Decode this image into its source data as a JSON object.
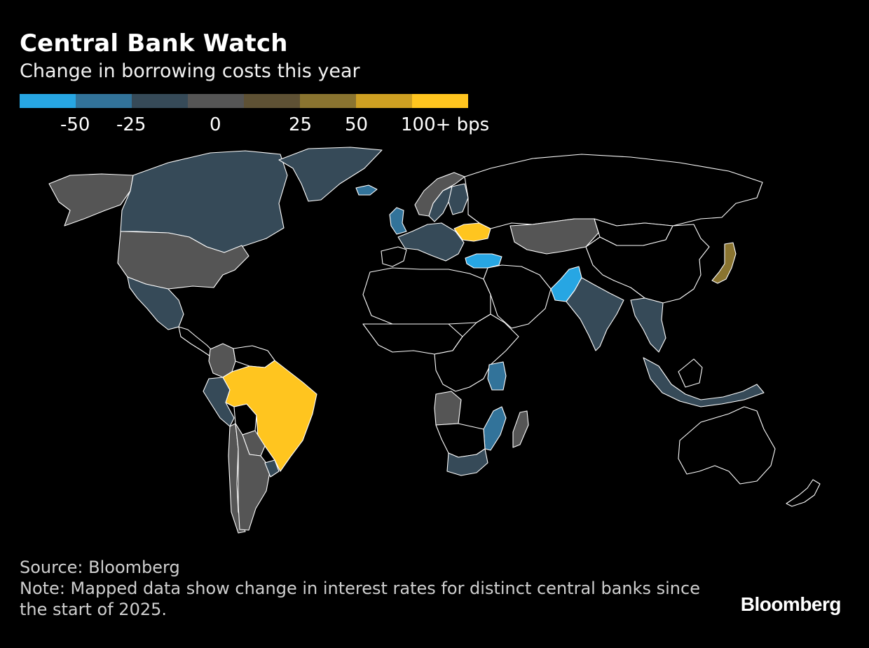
{
  "header": {
    "title": "Central Bank Watch",
    "subtitle": "Change in borrowing costs this year"
  },
  "legend": {
    "swatches": [
      "#27a6e3",
      "#32739a",
      "#364a58",
      "#555555",
      "#5e5134",
      "#8a7430",
      "#cea022",
      "#ffc51f"
    ],
    "labels": [
      "-50",
      "-25",
      "0",
      "25",
      "50",
      "100+ bps"
    ]
  },
  "map": {
    "no_data_color": "#000000",
    "border_color": "#ffffff",
    "regions": [
      {
        "name": "Alaska",
        "color": "#555555"
      },
      {
        "name": "Canada",
        "color": "#364a58"
      },
      {
        "name": "Greenland",
        "color": "#364a58"
      },
      {
        "name": "United States",
        "color": "#555555"
      },
      {
        "name": "Mexico",
        "color": "#364a58"
      },
      {
        "name": "Central America",
        "color": "#000000"
      },
      {
        "name": "Colombia",
        "color": "#555555"
      },
      {
        "name": "Venezuela",
        "color": "#000000"
      },
      {
        "name": "Peru",
        "color": "#364a58"
      },
      {
        "name": "Bolivia",
        "color": "#000000"
      },
      {
        "name": "Brazil",
        "color": "#ffc51f"
      },
      {
        "name": "Paraguay",
        "color": "#555555"
      },
      {
        "name": "Chile",
        "color": "#555555"
      },
      {
        "name": "Argentina",
        "color": "#555555"
      },
      {
        "name": "Uruguay",
        "color": "#364a58"
      },
      {
        "name": "Iceland",
        "color": "#32739a"
      },
      {
        "name": "Norway",
        "color": "#555555"
      },
      {
        "name": "Sweden",
        "color": "#364a58"
      },
      {
        "name": "Finland",
        "color": "#364a58"
      },
      {
        "name": "United Kingdom",
        "color": "#32739a"
      },
      {
        "name": "Western Europe",
        "color": "#364a58"
      },
      {
        "name": "Spain and Portugal",
        "color": "#364a58"
      },
      {
        "name": "Ukraine",
        "color": "#ffc51f"
      },
      {
        "name": "Turkey",
        "color": "#27a6e3"
      },
      {
        "name": "Russia",
        "color": "#000000"
      },
      {
        "name": "Kazakhstan",
        "color": "#555555"
      },
      {
        "name": "China",
        "color": "#000000"
      },
      {
        "name": "Mongolia",
        "color": "#000000"
      },
      {
        "name": "Japan",
        "color": "#8a7430"
      },
      {
        "name": "Pakistan",
        "color": "#27a6e3"
      },
      {
        "name": "India",
        "color": "#364a58"
      },
      {
        "name": "Middle East",
        "color": "#000000"
      },
      {
        "name": "North Africa",
        "color": "#000000"
      },
      {
        "name": "West Africa",
        "color": "#000000"
      },
      {
        "name": "Kenya",
        "color": "#32739a"
      },
      {
        "name": "Angola",
        "color": "#555555"
      },
      {
        "name": "Mozambique",
        "color": "#32739a"
      },
      {
        "name": "Madagascar",
        "color": "#555555"
      },
      {
        "name": "South Africa",
        "color": "#364a58"
      },
      {
        "name": "Southeast Asia",
        "color": "#364a58"
      },
      {
        "name": "Indonesia",
        "color": "#364a58"
      },
      {
        "name": "Australia",
        "color": "#000000"
      },
      {
        "name": "New Zealand",
        "color": "#000000"
      }
    ]
  },
  "footer": {
    "source": "Source: Bloomberg",
    "note": "Note: Mapped data show change in interest rates for distinct central banks since the start of 2025.",
    "logo_text": "Bloomberg"
  }
}
